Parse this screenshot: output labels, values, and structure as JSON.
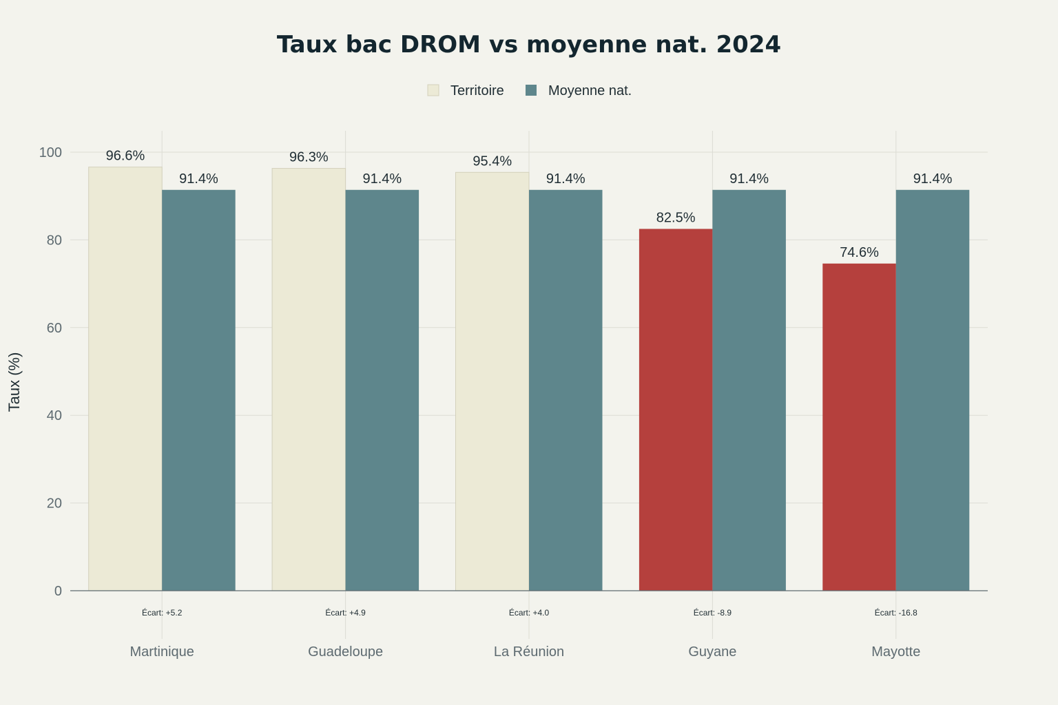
{
  "chart_data": {
    "type": "bar",
    "title": "Taux bac DROM vs moyenne nat. 2024",
    "ylabel": "Taux (%)",
    "xlabel": "",
    "ylim": [
      0,
      105
    ],
    "yticks": [
      0,
      20,
      40,
      60,
      80,
      100
    ],
    "grid": true,
    "legend_position": "top-center",
    "categories": [
      "Martinique",
      "Guadeloupe",
      "La Réunion",
      "Guyane",
      "Mayotte"
    ],
    "series": [
      {
        "name": "Territoire",
        "values": [
          96.6,
          96.3,
          95.4,
          82.5,
          74.6
        ],
        "labels": [
          "96.6%",
          "96.3%",
          "95.4%",
          "82.5%",
          "74.6%"
        ],
        "color": "#ecead6",
        "below_color": "#b5403d"
      },
      {
        "name": "Moyenne nat.",
        "values": [
          91.4,
          91.4,
          91.4,
          91.4,
          91.4
        ],
        "labels": [
          "91.4%",
          "91.4%",
          "91.4%",
          "91.4%",
          "91.4%"
        ],
        "color": "#5e868c"
      }
    ],
    "annotations": [
      "Écart: +5.2",
      "Écart: +4.9",
      "Écart: +4.0",
      "Écart: -8.9",
      "Écart: -16.8"
    ]
  }
}
